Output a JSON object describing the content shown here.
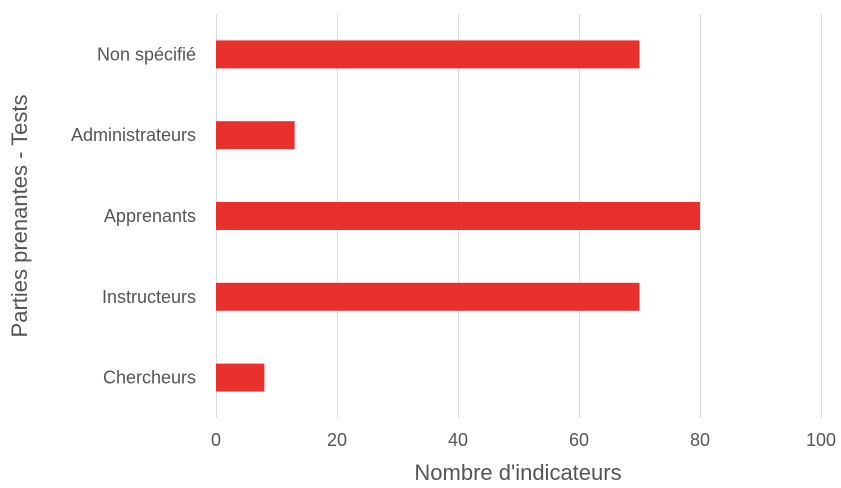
{
  "chart_data": {
    "type": "bar",
    "orientation": "horizontal",
    "categories": [
      "Non spécifié",
      "Administrateurs",
      "Apprenants",
      "Instructeurs",
      "Chercheurs"
    ],
    "values": [
      70,
      13,
      80,
      70,
      8
    ],
    "xlabel": "Nombre d'indicateurs",
    "ylabel": "Parties prenantes - Tests",
    "xlim": [
      0,
      100
    ],
    "xticks": [
      0,
      20,
      40,
      60,
      80,
      100
    ],
    "grid": "vertical",
    "legend": "none",
    "bar_color": "#e8312d"
  }
}
